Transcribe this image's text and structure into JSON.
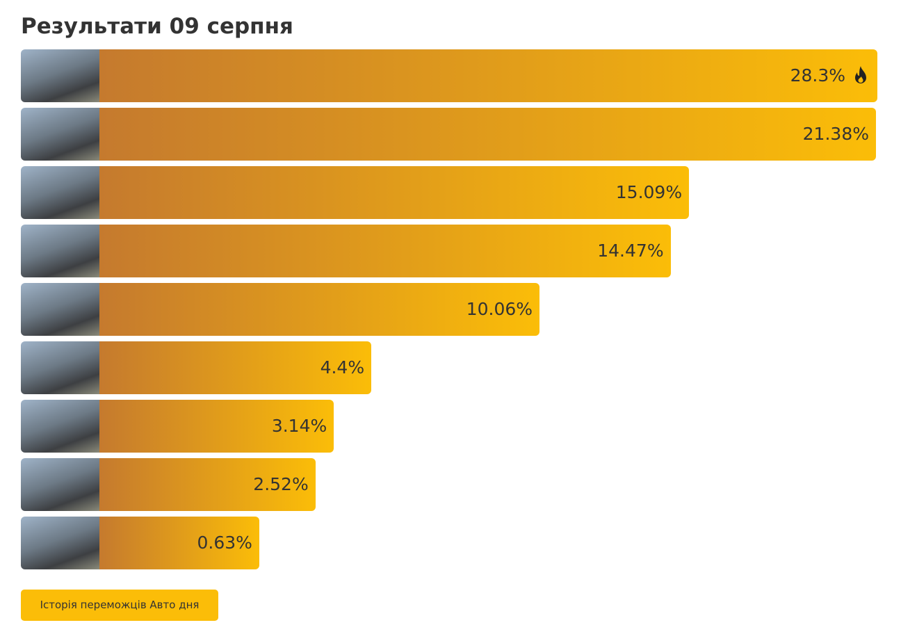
{
  "title": "Результати 09 серпня",
  "chart_data": {
    "type": "bar",
    "orientation": "horizontal",
    "values": [
      28.3,
      21.38,
      15.09,
      14.47,
      10.06,
      4.4,
      3.14,
      2.52,
      0.63
    ],
    "value_labels": [
      "28.3%",
      "21.38%",
      "15.09%",
      "14.47%",
      "10.06%",
      "4.4%",
      "3.14%",
      "2.52%",
      "0.63%"
    ],
    "color": "#fbbd08",
    "color_start": "#c57a2e"
  },
  "footer_button": "Історія переможців Авто дня"
}
